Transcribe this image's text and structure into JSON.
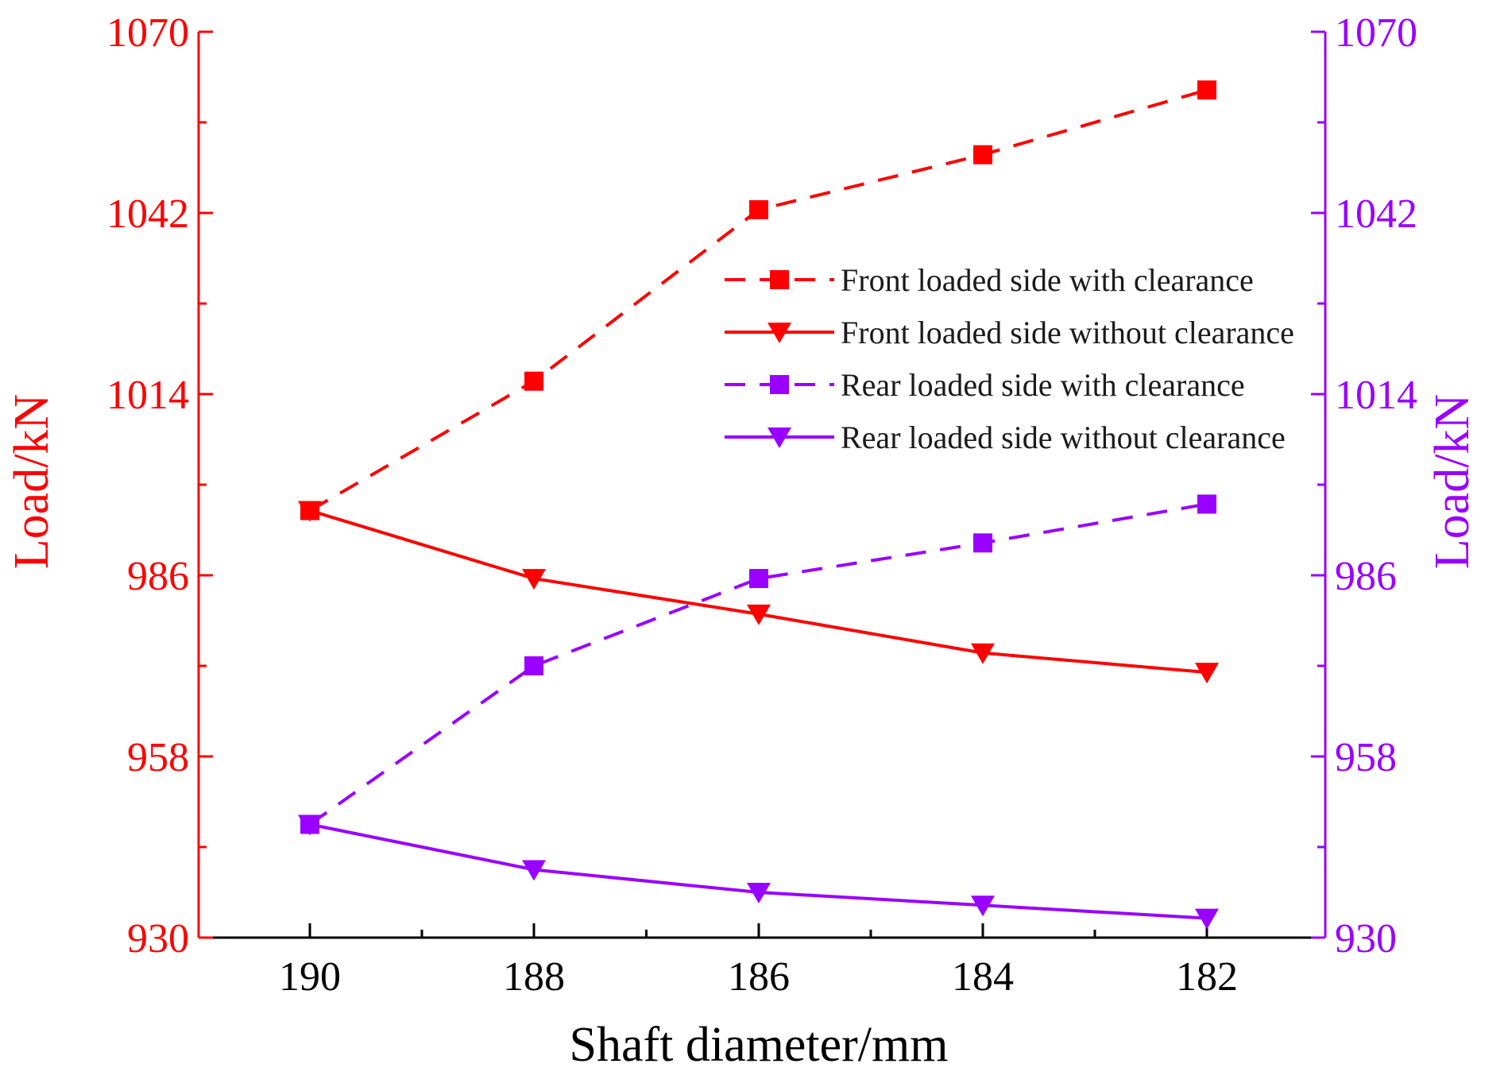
{
  "chart_data": {
    "type": "line",
    "title": "",
    "xlabel": "Shaft diameter/mm",
    "ylabel_left": "Load/kN",
    "ylabel_right": "Load/kN",
    "x": [
      190,
      188,
      186,
      184,
      182
    ],
    "x_tick_labels": [
      "190",
      "188",
      "186",
      "184",
      "182"
    ],
    "x_reversed": true,
    "ylim": [
      930,
      1070
    ],
    "y_ticks": [
      930,
      958,
      986,
      1014,
      1042,
      1070
    ],
    "y_tick_labels": [
      "930",
      "958",
      "986",
      "1014",
      "1042",
      "1070"
    ],
    "grid": false,
    "legend_position": "center-right",
    "colors": {
      "front": "#ff0000",
      "rear": "#9900ff",
      "axis": "#000000"
    },
    "series": [
      {
        "name": "Front loaded side with clearance",
        "color": "#ff0000",
        "line": "dashed",
        "marker": "square",
        "axis": "left",
        "values": [
          996,
          1016,
          1042.5,
          1051,
          1061
        ]
      },
      {
        "name": "Front loaded side without clearance",
        "color": "#ff0000",
        "line": "solid",
        "marker": "triangle-down",
        "axis": "left",
        "values": [
          996,
          985.5,
          980,
          974,
          971
        ]
      },
      {
        "name": "Rear loaded side with clearance",
        "color": "#9900ff",
        "line": "dashed",
        "marker": "square",
        "axis": "right",
        "values": [
          947.5,
          972,
          985.5,
          991,
          997
        ]
      },
      {
        "name": "Rear loaded side without clearance",
        "color": "#9900ff",
        "line": "solid",
        "marker": "triangle-down",
        "axis": "right",
        "values": [
          947.5,
          940.5,
          937,
          935,
          933
        ]
      }
    ]
  }
}
